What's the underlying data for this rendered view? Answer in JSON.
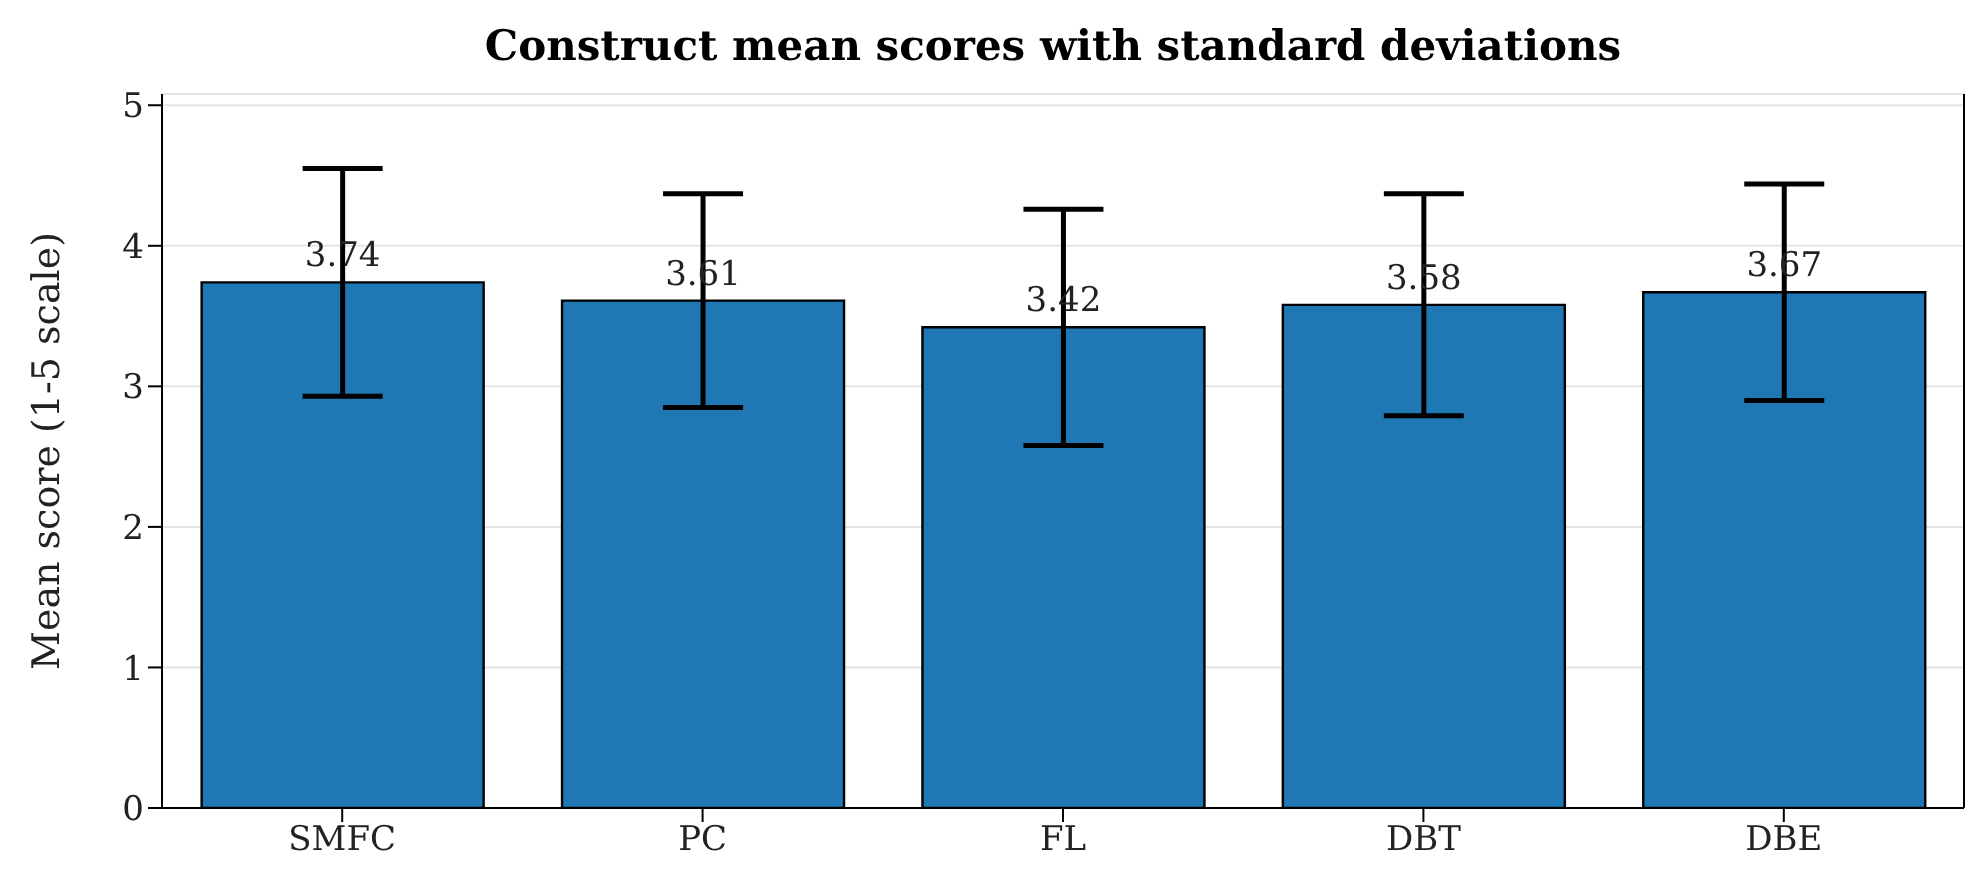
{
  "chart_data": {
    "type": "bar",
    "title": "Construct mean scores with standard deviations",
    "ylabel": "Mean score (1-5 scale)",
    "categories": [
      "SMFC",
      "PC",
      "FL",
      "DBT",
      "DBE"
    ],
    "values": [
      3.74,
      3.61,
      3.42,
      3.58,
      3.67
    ],
    "errors": [
      0.81,
      0.76,
      0.84,
      0.79,
      0.77
    ],
    "color": "#1f77b4",
    "ylim": [
      0,
      5.08
    ],
    "yticks": [
      0,
      1,
      2,
      3,
      4,
      5
    ],
    "grid": "y",
    "data_labels": true
  }
}
